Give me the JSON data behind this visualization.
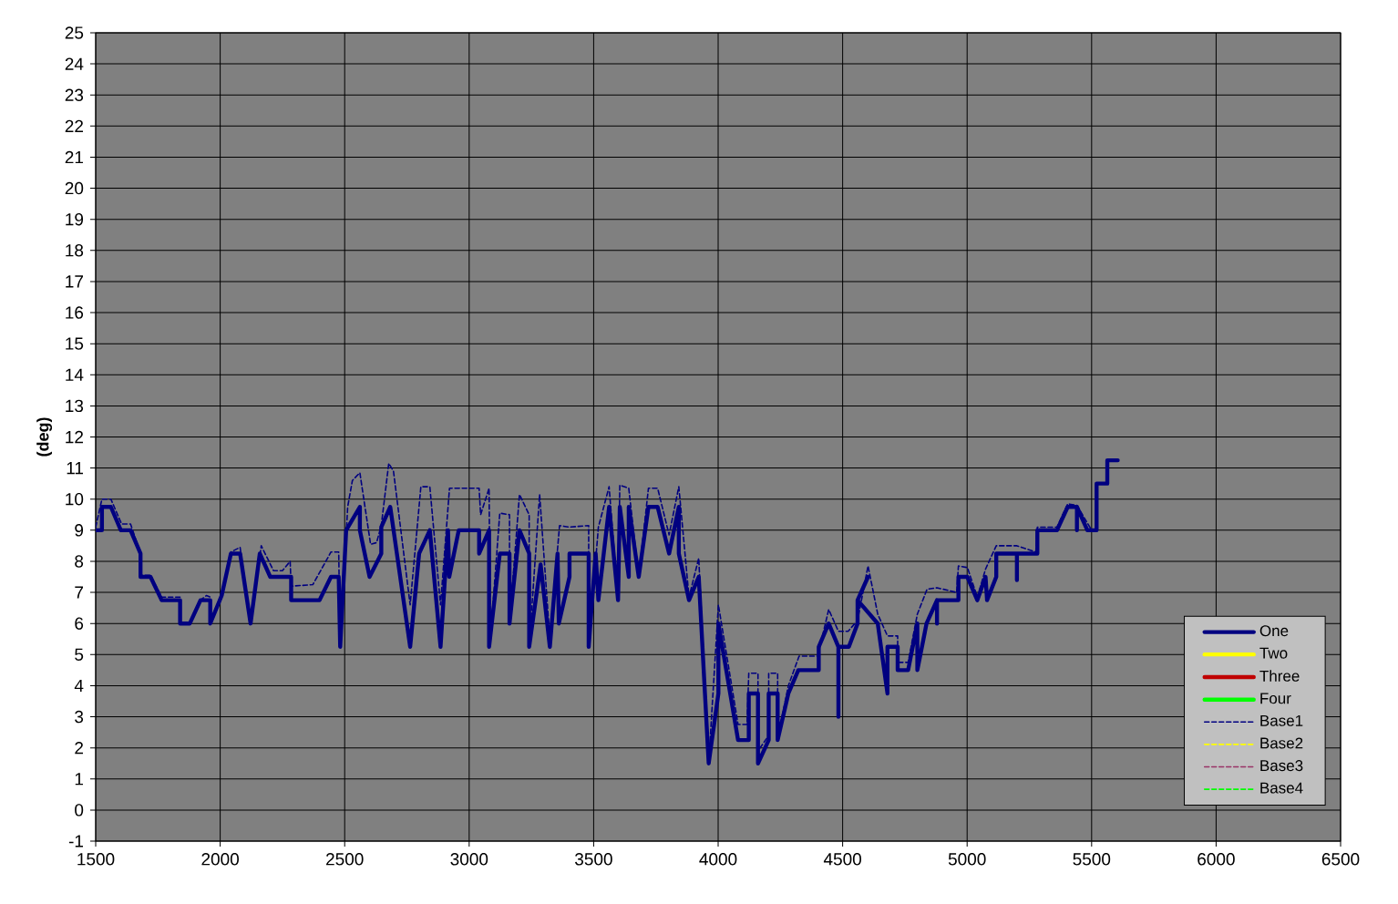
{
  "chart_data": {
    "type": "line",
    "ylabel": "(deg)",
    "xlim": [
      1500,
      6500
    ],
    "xticks": [
      1500,
      2000,
      2500,
      3000,
      3500,
      4000,
      4500,
      5000,
      5500,
      6000,
      6500
    ],
    "ylim": [
      -1,
      25
    ],
    "yticks": [
      -1,
      0,
      1,
      2,
      3,
      4,
      5,
      6,
      7,
      8,
      9,
      10,
      11,
      12,
      13,
      14,
      15,
      16,
      17,
      18,
      19,
      20,
      21,
      22,
      23,
      24,
      25
    ],
    "grid": true,
    "legend": "bottom right",
    "series": [
      {
        "name": "One",
        "color": "#000080",
        "line_style": "solid",
        "x": [
          1500,
          1525,
          1525,
          1561,
          1601,
          1640,
          1680,
          1680,
          1720,
          1765,
          1839,
          1839,
          1878,
          1921,
          1960,
          1960,
          2006,
          2043,
          2080,
          2122,
          2159,
          2201,
          2285,
          2285,
          2399,
          2445,
          2476,
          2482,
          2506,
          2561,
          2561,
          2600,
          2647,
          2647,
          2683,
          2763,
          2799,
          2842,
          2885,
          2915,
          2920,
          2958,
          3040,
          3040,
          3080,
          3080,
          3123,
          3162,
          3162,
          3202,
          3241,
          3241,
          3287,
          3324,
          3355,
          3360,
          3403,
          3403,
          3480,
          3480,
          3508,
          3519,
          3562,
          3598,
          3605,
          3641,
          3641,
          3681,
          3720,
          3757,
          3803,
          3842,
          3842,
          3883,
          3922,
          3962,
          4001,
          4001,
          4080,
          4123,
          4123,
          4160,
          4160,
          4203,
          4203,
          4239,
          4239,
          4282,
          4322,
          4404,
          4404,
          4444,
          4483,
          4483,
          4483,
          4525,
          4560,
          4560,
          4602,
          4560,
          4641,
          4680,
          4680,
          4721,
          4721,
          4763,
          4800,
          4800,
          4837,
          4879,
          4879,
          4879,
          4965,
          4965,
          5001,
          5041,
          5074,
          5080,
          5117,
          5117,
          5200,
          5200,
          5200,
          5282,
          5282,
          5361,
          5404,
          5441,
          5441,
          5441,
          5483,
          5520,
          5520,
          5563,
          5563,
          5605
        ],
        "values": [
          9.0,
          9.0,
          9.75,
          9.75,
          9.0,
          9.0,
          8.25,
          7.5,
          7.5,
          6.75,
          6.75,
          6.0,
          6.0,
          6.75,
          6.75,
          6.0,
          6.9,
          8.25,
          8.25,
          6.0,
          8.25,
          7.5,
          7.5,
          6.75,
          6.75,
          7.5,
          7.5,
          5.25,
          9.0,
          9.75,
          9.0,
          7.5,
          8.25,
          9.1,
          9.75,
          5.25,
          8.25,
          9.0,
          5.25,
          9.0,
          7.5,
          9.0,
          9.0,
          8.25,
          9.0,
          5.25,
          8.25,
          8.25,
          6.0,
          9.0,
          8.25,
          5.25,
          7.9,
          5.25,
          8.25,
          6.0,
          7.5,
          8.25,
          8.25,
          5.25,
          8.25,
          6.75,
          9.75,
          6.75,
          9.75,
          7.5,
          9.75,
          7.5,
          9.75,
          9.75,
          8.25,
          9.75,
          8.25,
          6.75,
          7.5,
          1.5,
          3.75,
          6.0,
          2.25,
          2.25,
          3.75,
          3.75,
          1.5,
          2.25,
          3.75,
          3.75,
          2.25,
          3.75,
          4.5,
          4.5,
          5.25,
          6.0,
          5.25,
          3.0,
          5.25,
          5.25,
          6.0,
          6.75,
          7.5,
          6.75,
          6.0,
          3.75,
          5.25,
          5.25,
          4.5,
          4.5,
          6.0,
          4.5,
          6.0,
          6.75,
          6.0,
          6.75,
          6.75,
          7.5,
          7.5,
          6.75,
          7.5,
          6.75,
          7.5,
          8.25,
          8.25,
          7.4,
          8.25,
          8.25,
          9.0,
          9.0,
          9.75,
          9.75,
          9.0,
          9.75,
          9.0,
          9.0,
          10.5,
          10.5,
          11.25,
          11.25
        ]
      },
      {
        "name": "Two",
        "color": "#ffff00",
        "line_style": "solid"
      },
      {
        "name": "Three",
        "color": "#c00000",
        "line_style": "solid"
      },
      {
        "name": "Four",
        "color": "#00ff00",
        "line_style": "solid"
      },
      {
        "name": "Base1",
        "color": "#000080",
        "line_style": "dashed",
        "x": [
          1500,
          1525,
          1561,
          1604,
          1640,
          1680,
          1680,
          1720,
          1765,
          1839,
          1839,
          1878,
          1921,
          1945,
          1960,
          1960,
          2006,
          2043,
          2080,
          2122,
          2165,
          2214,
          2250,
          2281,
          2285,
          2372,
          2445,
          2476,
          2482,
          2512,
          2531,
          2561,
          2604,
          2628,
          2647,
          2677,
          2696,
          2763,
          2806,
          2842,
          2885,
          2921,
          2958,
          3040,
          3046,
          3080,
          3085,
          3123,
          3162,
          3162,
          3202,
          3241,
          3241,
          3283,
          3324,
          3363,
          3403,
          3480,
          3480,
          3519,
          3562,
          3598,
          3605,
          3641,
          3681,
          3720,
          3757,
          3803,
          3842,
          3883,
          3922,
          3962,
          4001,
          4080,
          4116,
          4123,
          4160,
          4160,
          4203,
          4203,
          4239,
          4239,
          4282,
          4325,
          4400,
          4444,
          4483,
          4522,
          4560,
          4602,
          4641,
          4680,
          4721,
          4721,
          4763,
          4800,
          4839,
          4879,
          4958,
          4965,
          5001,
          5041,
          5074,
          5117,
          5200,
          5276,
          5282,
          5361,
          5404,
          5441,
          5500
        ],
        "values": [
          9.1,
          10.0,
          10.0,
          9.2,
          9.2,
          8.25,
          7.55,
          7.55,
          6.85,
          6.85,
          6.0,
          6.0,
          6.75,
          6.9,
          6.85,
          6.0,
          6.9,
          8.3,
          8.45,
          6.0,
          8.5,
          7.7,
          7.7,
          8.0,
          7.2,
          7.25,
          8.3,
          8.3,
          5.25,
          9.75,
          10.6,
          10.85,
          8.55,
          8.6,
          9.15,
          11.15,
          10.9,
          6.6,
          10.4,
          10.4,
          6.6,
          10.35,
          10.35,
          10.35,
          9.5,
          10.35,
          5.5,
          9.55,
          9.5,
          6.0,
          10.15,
          9.5,
          5.25,
          10.15,
          5.5,
          9.15,
          9.1,
          9.15,
          5.25,
          9.1,
          10.4,
          6.75,
          10.45,
          10.35,
          7.5,
          10.35,
          10.35,
          8.85,
          10.4,
          6.85,
          8.1,
          1.5,
          6.6,
          2.75,
          2.75,
          4.4,
          4.4,
          1.9,
          2.4,
          4.4,
          4.4,
          2.3,
          4.0,
          4.95,
          4.95,
          6.45,
          5.75,
          5.75,
          6.1,
          7.85,
          6.3,
          5.6,
          5.6,
          4.75,
          4.75,
          6.3,
          7.1,
          7.15,
          7.0,
          7.85,
          7.8,
          6.85,
          7.75,
          8.5,
          8.5,
          8.3,
          9.1,
          9.1,
          9.85,
          9.8,
          9.0
        ]
      },
      {
        "name": "Base2",
        "color": "#ffff00",
        "line_style": "dashed"
      },
      {
        "name": "Base3",
        "color": "#993366",
        "line_style": "dashed"
      },
      {
        "name": "Base4",
        "color": "#00ff00",
        "line_style": "dashed"
      }
    ]
  }
}
